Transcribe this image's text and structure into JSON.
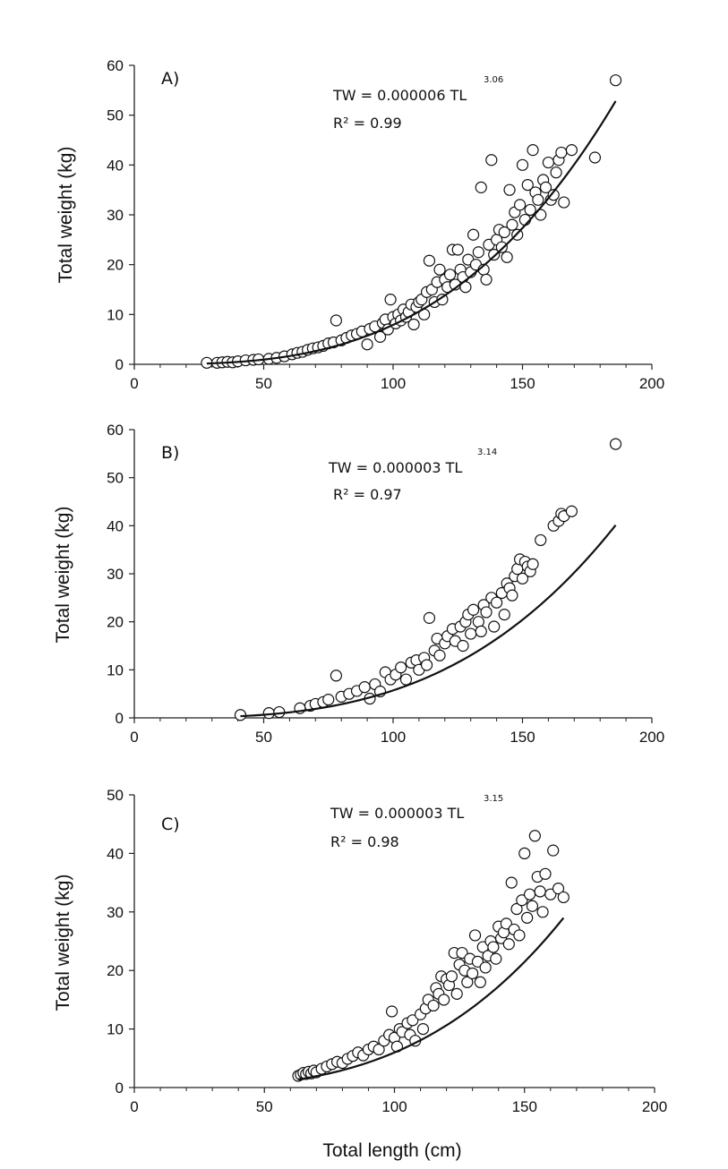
{
  "figure": {
    "xlabel": "Total length (cm)"
  },
  "chart_data": [
    {
      "type": "scatter",
      "panel": "A)",
      "ylabel": "Total weight (kg)",
      "xlim": [
        0,
        200
      ],
      "ylim": [
        0,
        60
      ],
      "xticks": [
        0,
        50,
        100,
        150,
        200
      ],
      "yticks": [
        0,
        10,
        20,
        30,
        40,
        50,
        60
      ],
      "equation": "TW = 0.000006 TL",
      "exponent": "3.06",
      "r2": "R² = 0.99",
      "fit": {
        "a": 6e-06,
        "b": 3.06,
        "x_range": [
          28,
          186
        ]
      },
      "points": [
        [
          28,
          0.3
        ],
        [
          32,
          0.3
        ],
        [
          34,
          0.4
        ],
        [
          36,
          0.5
        ],
        [
          38,
          0.4
        ],
        [
          40,
          0.6
        ],
        [
          43,
          0.8
        ],
        [
          46,
          0.9
        ],
        [
          48,
          1.0
        ],
        [
          52,
          1.1
        ],
        [
          55,
          1.3
        ],
        [
          58,
          1.6
        ],
        [
          61,
          2.0
        ],
        [
          63,
          2.3
        ],
        [
          65,
          2.5
        ],
        [
          67,
          2.9
        ],
        [
          69,
          3.2
        ],
        [
          71,
          3.4
        ],
        [
          73,
          3.7
        ],
        [
          75,
          4.2
        ],
        [
          77,
          4.4
        ],
        [
          78,
          8.8
        ],
        [
          80,
          4.8
        ],
        [
          82,
          5.3
        ],
        [
          84,
          5.8
        ],
        [
          86,
          6.1
        ],
        [
          88,
          6.6
        ],
        [
          90,
          4.0
        ],
        [
          91,
          7.1
        ],
        [
          93,
          7.6
        ],
        [
          95,
          5.5
        ],
        [
          96,
          8.3
        ],
        [
          97,
          9.0
        ],
        [
          98,
          7.0
        ],
        [
          99,
          13.0
        ],
        [
          100,
          9.5
        ],
        [
          101,
          8.2
        ],
        [
          102,
          10.0
        ],
        [
          103,
          8.8
        ],
        [
          104,
          11.0
        ],
        [
          105,
          9.5
        ],
        [
          106,
          10.5
        ],
        [
          107,
          12.0
        ],
        [
          108,
          8.0
        ],
        [
          109,
          11.5
        ],
        [
          110,
          12.5
        ],
        [
          111,
          13.0
        ],
        [
          112,
          10.0
        ],
        [
          113,
          14.5
        ],
        [
          114,
          20.8
        ],
        [
          115,
          15.0
        ],
        [
          116,
          12.5
        ],
        [
          117,
          16.5
        ],
        [
          118,
          19.0
        ],
        [
          119,
          13.0
        ],
        [
          120,
          17.0
        ],
        [
          121,
          15.5
        ],
        [
          122,
          18.0
        ],
        [
          123,
          23.0
        ],
        [
          124,
          16.0
        ],
        [
          125,
          23.0
        ],
        [
          126,
          19.0
        ],
        [
          127,
          17.5
        ],
        [
          128,
          15.5
        ],
        [
          129,
          21.0
        ],
        [
          130,
          18.5
        ],
        [
          131,
          26.0
        ],
        [
          132,
          20.0
        ],
        [
          133,
          22.5
        ],
        [
          134,
          35.5
        ],
        [
          135,
          19.0
        ],
        [
          136,
          17.0
        ],
        [
          137,
          24.0
        ],
        [
          138,
          41.0
        ],
        [
          139,
          22.0
        ],
        [
          140,
          25.0
        ],
        [
          141,
          27.0
        ],
        [
          142,
          23.5
        ],
        [
          143,
          26.5
        ],
        [
          144,
          21.5
        ],
        [
          145,
          35.0
        ],
        [
          146,
          28.0
        ],
        [
          147,
          30.5
        ],
        [
          148,
          26.0
        ],
        [
          149,
          32.0
        ],
        [
          150,
          40.0
        ],
        [
          151,
          29.0
        ],
        [
          152,
          36.0
        ],
        [
          153,
          31.0
        ],
        [
          154,
          43.0
        ],
        [
          155,
          34.5
        ],
        [
          156,
          33.0
        ],
        [
          157,
          30.0
        ],
        [
          158,
          37.0
        ],
        [
          159,
          35.5
        ],
        [
          160,
          40.5
        ],
        [
          161,
          33.0
        ],
        [
          162,
          34.0
        ],
        [
          163,
          38.5
        ],
        [
          164,
          41.0
        ],
        [
          165,
          42.5
        ],
        [
          166,
          32.5
        ],
        [
          169,
          43.0
        ],
        [
          178,
          41.5
        ],
        [
          186,
          57.0
        ]
      ]
    },
    {
      "type": "scatter",
      "panel": "B)",
      "ylabel": "Total weight (kg)",
      "xlim": [
        0,
        200
      ],
      "ylim": [
        0,
        60
      ],
      "xticks": [
        0,
        50,
        100,
        150,
        200
      ],
      "yticks": [
        0,
        10,
        20,
        30,
        40,
        50,
        60
      ],
      "equation": "TW = 0.000003 TL",
      "exponent": "3.14",
      "r2": "R² = 0.97",
      "fit": {
        "a": 3e-06,
        "b": 3.14,
        "x_range": [
          41,
          186
        ]
      },
      "points": [
        [
          41,
          0.6
        ],
        [
          52,
          1.0
        ],
        [
          56,
          1.2
        ],
        [
          64,
          2.0
        ],
        [
          68,
          2.5
        ],
        [
          70,
          2.9
        ],
        [
          73,
          3.3
        ],
        [
          75,
          3.8
        ],
        [
          78,
          8.8
        ],
        [
          80,
          4.4
        ],
        [
          83,
          5.0
        ],
        [
          86,
          5.6
        ],
        [
          89,
          6.4
        ],
        [
          91,
          4.0
        ],
        [
          93,
          7.0
        ],
        [
          95,
          5.5
        ],
        [
          97,
          9.5
        ],
        [
          99,
          8.0
        ],
        [
          101,
          9.0
        ],
        [
          103,
          10.5
        ],
        [
          105,
          8.0
        ],
        [
          107,
          11.5
        ],
        [
          109,
          12.0
        ],
        [
          110,
          10.0
        ],
        [
          112,
          12.5
        ],
        [
          113,
          11.0
        ],
        [
          114,
          20.8
        ],
        [
          116,
          14.0
        ],
        [
          117,
          16.5
        ],
        [
          118,
          13.0
        ],
        [
          120,
          15.5
        ],
        [
          121,
          17.0
        ],
        [
          123,
          18.5
        ],
        [
          124,
          16.0
        ],
        [
          126,
          19.0
        ],
        [
          127,
          15.0
        ],
        [
          128,
          20.0
        ],
        [
          129,
          21.5
        ],
        [
          130,
          17.5
        ],
        [
          131,
          22.5
        ],
        [
          133,
          20.0
        ],
        [
          134,
          18.0
        ],
        [
          135,
          23.5
        ],
        [
          136,
          22.0
        ],
        [
          138,
          25.0
        ],
        [
          139,
          19.0
        ],
        [
          140,
          24.0
        ],
        [
          142,
          26.0
        ],
        [
          143,
          21.5
        ],
        [
          144,
          28.0
        ],
        [
          145,
          27.0
        ],
        [
          146,
          25.5
        ],
        [
          147,
          29.5
        ],
        [
          148,
          31.0
        ],
        [
          149,
          33.0
        ],
        [
          150,
          29.0
        ],
        [
          151,
          32.5
        ],
        [
          152,
          31.5
        ],
        [
          153,
          30.5
        ],
        [
          154,
          32.0
        ],
        [
          157,
          37.0
        ],
        [
          162,
          40.0
        ],
        [
          164,
          41.0
        ],
        [
          165,
          42.5
        ],
        [
          166,
          42.0
        ],
        [
          169,
          43.0
        ],
        [
          186,
          57.0
        ]
      ]
    },
    {
      "type": "scatter",
      "panel": "C)",
      "ylabel": "Total weight (kg)",
      "xlim": [
        0,
        200
      ],
      "ylim": [
        0,
        50
      ],
      "xticks": [
        0,
        50,
        100,
        150,
        200
      ],
      "yticks": [
        0,
        10,
        20,
        30,
        40,
        50
      ],
      "equation": "TW = 0.000003 TL",
      "exponent": "3.15",
      "r2": "R² = 0.98",
      "fit": {
        "a": 3e-06,
        "b": 3.15,
        "x_range": [
          63,
          165
        ]
      },
      "points": [
        [
          63,
          2.0
        ],
        [
          64,
          2.2
        ],
        [
          65,
          2.5
        ],
        [
          66,
          2.3
        ],
        [
          67,
          2.7
        ],
        [
          68,
          2.4
        ],
        [
          69,
          2.9
        ],
        [
          70,
          2.6
        ],
        [
          72,
          3.2
        ],
        [
          74,
          3.6
        ],
        [
          76,
          4.0
        ],
        [
          78,
          4.4
        ],
        [
          80,
          4.2
        ],
        [
          82,
          4.9
        ],
        [
          84,
          5.4
        ],
        [
          86,
          6.0
        ],
        [
          88,
          5.5
        ],
        [
          90,
          6.5
        ],
        [
          92,
          7.0
        ],
        [
          94,
          6.5
        ],
        [
          96,
          8.0
        ],
        [
          98,
          9.0
        ],
        [
          99,
          13.0
        ],
        [
          100,
          8.5
        ],
        [
          101,
          7.0
        ],
        [
          102,
          10.0
        ],
        [
          103,
          9.5
        ],
        [
          105,
          11.0
        ],
        [
          106,
          9.0
        ],
        [
          107,
          11.5
        ],
        [
          108,
          8.0
        ],
        [
          110,
          12.5
        ],
        [
          111,
          10.0
        ],
        [
          112,
          13.5
        ],
        [
          113,
          15.0
        ],
        [
          115,
          14.0
        ],
        [
          116,
          17.0
        ],
        [
          117,
          16.0
        ],
        [
          118,
          19.0
        ],
        [
          119,
          15.0
        ],
        [
          120,
          18.5
        ],
        [
          121,
          17.5
        ],
        [
          122,
          19.0
        ],
        [
          123,
          23.0
        ],
        [
          124,
          16.0
        ],
        [
          125,
          21.0
        ],
        [
          126,
          23.0
        ],
        [
          127,
          20.0
        ],
        [
          128,
          18.0
        ],
        [
          129,
          22.0
        ],
        [
          130,
          19.5
        ],
        [
          131,
          26.0
        ],
        [
          132,
          21.5
        ],
        [
          133,
          18.0
        ],
        [
          134,
          24.0
        ],
        [
          135,
          20.5
        ],
        [
          136,
          22.5
        ],
        [
          137,
          25.0
        ],
        [
          138,
          24.0
        ],
        [
          139,
          22.0
        ],
        [
          140,
          27.5
        ],
        [
          141,
          25.5
        ],
        [
          142,
          26.5
        ],
        [
          143,
          28.0
        ],
        [
          144,
          24.5
        ],
        [
          145,
          35.0
        ],
        [
          146,
          27.0
        ],
        [
          147,
          30.5
        ],
        [
          148,
          26.0
        ],
        [
          149,
          32.0
        ],
        [
          150,
          40.0
        ],
        [
          151,
          29.0
        ],
        [
          152,
          33.0
        ],
        [
          153,
          31.0
        ],
        [
          154,
          43.0
        ],
        [
          155,
          36.0
        ],
        [
          156,
          33.5
        ],
        [
          157,
          30.0
        ],
        [
          158,
          36.5
        ],
        [
          160,
          33.0
        ],
        [
          161,
          40.5
        ],
        [
          163,
          34.0
        ],
        [
          165,
          32.5
        ]
      ]
    }
  ]
}
